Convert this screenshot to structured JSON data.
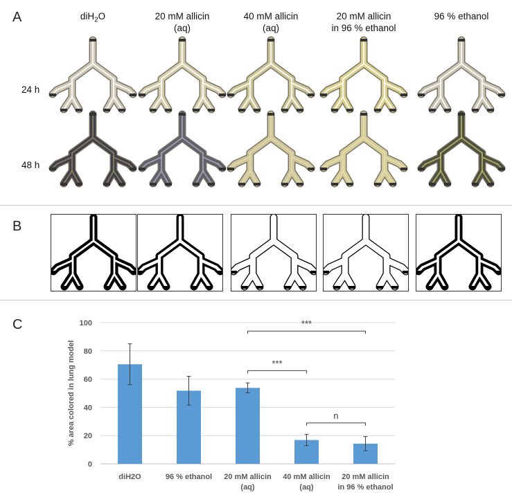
{
  "panels": {
    "a": "A",
    "b": "B",
    "c": "C"
  },
  "columns": [
    {
      "l1": "diH2O",
      "l2": ""
    },
    {
      "l1": "20 mM allicin",
      "l2": "(aq)"
    },
    {
      "l1": "40 mM allicin",
      "l2": "(aq)"
    },
    {
      "l1": "20 mM allicin",
      "l2": "in 96 % ethanol"
    },
    {
      "l1": "96 % ethanol",
      "l2": ""
    }
  ],
  "rows": [
    "24 h",
    "48 h"
  ],
  "photo_colors": {
    "24h": [
      "#cfc7b6",
      "#d2cca8",
      "#cbc596",
      "#d8cf8a",
      "#c9c3b2"
    ],
    "48h": [
      "#3f3f47",
      "#5e5f6c",
      "#cfc69a",
      "#d6cd98",
      "#4a4f3e"
    ],
    "hilite48": [
      "#8a8460",
      "#a8a6aa",
      "#e0d8b0",
      "#e4dcb0",
      "#b9b36a"
    ]
  },
  "binary_coverage": [
    0.71,
    0.52,
    0.05,
    0.03,
    0.62
  ],
  "chart_data": {
    "type": "bar",
    "categories": [
      {
        "l1": "diH2O",
        "l2": ""
      },
      {
        "l1": "96 % ethanol",
        "l2": ""
      },
      {
        "l1": "20 mM allicin",
        "l2": "(aq)"
      },
      {
        "l1": "40 mM allicin",
        "l2": "(aq)"
      },
      {
        "l1": "20 mM allicin",
        "l2": "in 96 % ethanol"
      }
    ],
    "values": [
      70.5,
      51.8,
      53.8,
      16.9,
      14.3
    ],
    "errors": [
      14.5,
      10.2,
      3.5,
      4.0,
      5.0
    ],
    "ylabel": "% area colored in lung model",
    "ylim": [
      0,
      100
    ],
    "yticks": [
      0,
      20,
      40,
      60,
      80,
      100
    ],
    "grid": true,
    "bar_color": "#5b9bd5",
    "significance": [
      {
        "from": 2,
        "to": 4,
        "label": "***",
        "level": 94
      },
      {
        "from": 2,
        "to": 3,
        "label": "***",
        "level": 66
      },
      {
        "from": 3,
        "to": 4,
        "label": "n",
        "level": 29
      }
    ]
  }
}
